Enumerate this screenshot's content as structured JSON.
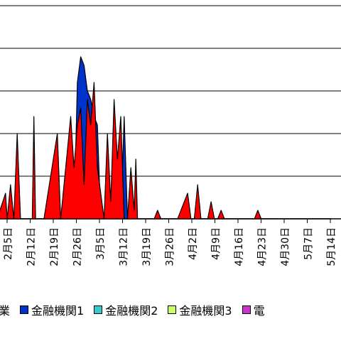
{
  "chart_data": {
    "type": "area",
    "title": "",
    "xlabel": "",
    "ylabel": "",
    "x_tick_labels": [
      "2月5日",
      "2月12日",
      "2月19日",
      "2月26日",
      "3月5日",
      "3月12日",
      "3月19日",
      "3月26日",
      "4月2日",
      "4月9日",
      "4月16日",
      "4月23日",
      "4月30日",
      "5月7日",
      "5月14日"
    ],
    "grid": true,
    "legend_placement": "bottom",
    "series": [
      {
        "name": "業",
        "color": "#ff0000",
        "points": [
          [
            0,
            0
          ],
          [
            2.5,
            0.6
          ],
          [
            3,
            0
          ],
          [
            4,
            0.8
          ],
          [
            5,
            0
          ],
          [
            6,
            2.0
          ],
          [
            7,
            0
          ],
          [
            10.5,
            0
          ],
          [
            11,
            2.4
          ],
          [
            11.5,
            0
          ],
          [
            14,
            0
          ],
          [
            18,
            2.0
          ],
          [
            19,
            0
          ],
          [
            20,
            0.8
          ],
          [
            21,
            1.6
          ],
          [
            22,
            2.4
          ],
          [
            23,
            1.2
          ],
          [
            24,
            2.2
          ],
          [
            25,
            2.6
          ],
          [
            26,
            0.8
          ],
          [
            27,
            2.8
          ],
          [
            28,
            2.2
          ],
          [
            29,
            3.2
          ],
          [
            30,
            1.2
          ],
          [
            32,
            0
          ],
          [
            33,
            2.0
          ],
          [
            34,
            0.4
          ],
          [
            35,
            2.8
          ],
          [
            36,
            1.4
          ],
          [
            37,
            2.4
          ],
          [
            38,
            0
          ],
          [
            39,
            0
          ],
          [
            40,
            1.2
          ],
          [
            41,
            0.2
          ],
          [
            41.5,
            1.4
          ],
          [
            42,
            0
          ],
          [
            47,
            0
          ],
          [
            48,
            0.2
          ],
          [
            49,
            0
          ],
          [
            54,
            0
          ],
          [
            57,
            0.6
          ],
          [
            58,
            0
          ],
          [
            59,
            0
          ],
          [
            60,
            0.8
          ],
          [
            61,
            0
          ],
          [
            63,
            0
          ],
          [
            64,
            0.4
          ],
          [
            65,
            0
          ],
          [
            66,
            0
          ],
          [
            67,
            0.2
          ],
          [
            68,
            0
          ],
          [
            77,
            0
          ],
          [
            78,
            0.2
          ],
          [
            79,
            0
          ],
          [
            100,
            0
          ]
        ]
      },
      {
        "name": "金融機関1",
        "color": "#0033cc",
        "points": [
          [
            0,
            0
          ],
          [
            23,
            0
          ],
          [
            24,
            3.2
          ],
          [
            25,
            3.8
          ],
          [
            26,
            3.6
          ],
          [
            27,
            3.0
          ],
          [
            28,
            2.8
          ],
          [
            29,
            2.4
          ],
          [
            30,
            2.2
          ],
          [
            31,
            0
          ],
          [
            37,
            0
          ],
          [
            38,
            2.4
          ],
          [
            39,
            0
          ],
          [
            100,
            0
          ]
        ]
      },
      {
        "name": "金融機関2",
        "color": "#33cccc",
        "points": []
      },
      {
        "name": "金融機関3",
        "color": "#ccff66",
        "points": []
      },
      {
        "name": "電",
        "color": "#cc33cc",
        "points": []
      }
    ],
    "y_range": [
      0,
      5
    ]
  }
}
